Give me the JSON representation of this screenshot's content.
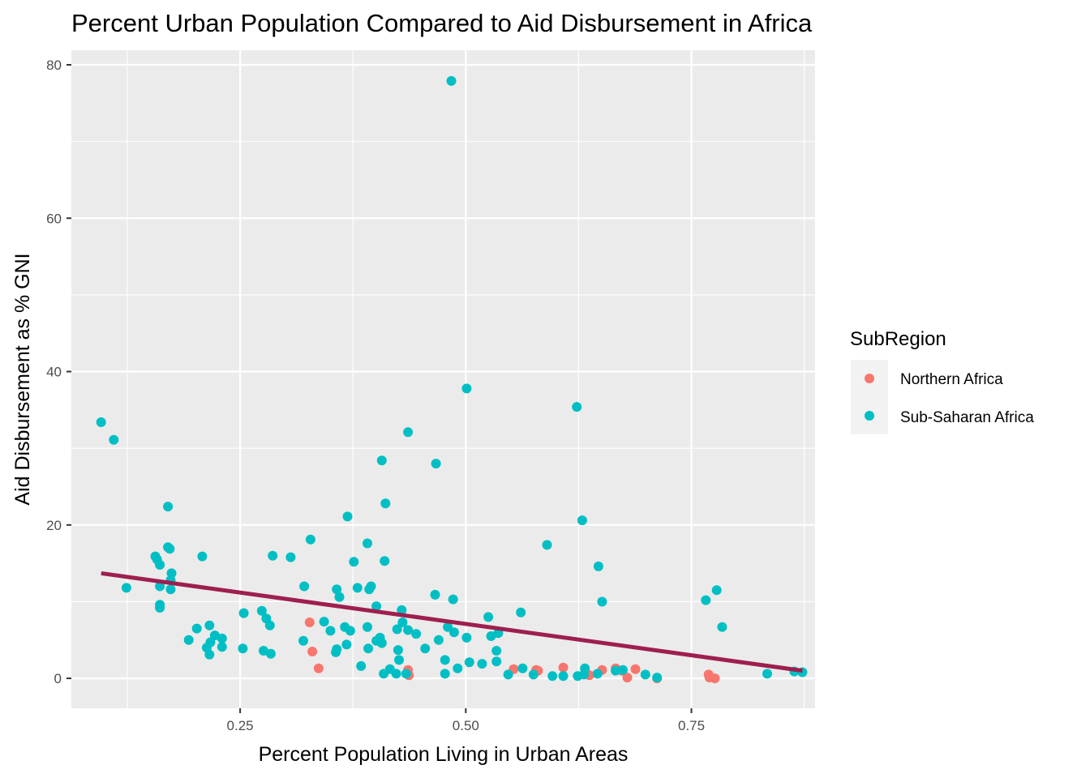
{
  "chart_data": {
    "type": "scatter",
    "title": "Percent Urban Population Compared to Aid Disbursement in Africa",
    "xlabel": "Percent Population Living in Urban Areas",
    "ylabel": "Aid Disbursement as % GNI",
    "xlim": [
      0.063,
      0.887
    ],
    "ylim": [
      -3.9,
      81.9
    ],
    "x_ticks": [
      0.25,
      0.5,
      0.75
    ],
    "x_tick_labels": [
      "0.25",
      "0.50",
      "0.75"
    ],
    "y_ticks": [
      0,
      20,
      40,
      60,
      80
    ],
    "y_tick_labels": [
      "0",
      "20",
      "40",
      "60",
      "80"
    ],
    "grid": true,
    "legend": {
      "title": "SubRegion",
      "position": "right",
      "entries": [
        {
          "label": "Northern Africa",
          "color": "#F8766D"
        },
        {
          "label": "Sub-Saharan Africa",
          "color": "#00BFC4"
        }
      ]
    },
    "trend_line": {
      "x": [
        0.096,
        0.873
      ],
      "y": [
        13.7,
        1.0
      ],
      "color": "#9E1F4F"
    },
    "series": [
      {
        "name": "Northern Africa",
        "color": "#F8766D",
        "points": [
          [
            0.327,
            7.3
          ],
          [
            0.33,
            3.5
          ],
          [
            0.337,
            1.3
          ],
          [
            0.436,
            1.1
          ],
          [
            0.437,
            0.4
          ],
          [
            0.553,
            1.2
          ],
          [
            0.578,
            1.1
          ],
          [
            0.58,
            1.0
          ],
          [
            0.608,
            1.4
          ],
          [
            0.633,
            0.7
          ],
          [
            0.637,
            0.4
          ],
          [
            0.651,
            1.1
          ],
          [
            0.666,
            1.3
          ],
          [
            0.673,
            1.0
          ],
          [
            0.679,
            0.1
          ],
          [
            0.688,
            1.2
          ],
          [
            0.712,
            0.0
          ],
          [
            0.769,
            0.5
          ],
          [
            0.77,
            0.1
          ],
          [
            0.776,
            0.0
          ]
        ]
      },
      {
        "name": "Sub-Saharan Africa",
        "color": "#00BFC4",
        "points": [
          [
            0.096,
            33.4
          ],
          [
            0.11,
            31.1
          ],
          [
            0.124,
            11.8
          ],
          [
            0.156,
            15.9
          ],
          [
            0.158,
            15.5
          ],
          [
            0.161,
            14.8
          ],
          [
            0.161,
            12.0
          ],
          [
            0.161,
            9.6
          ],
          [
            0.161,
            9.2
          ],
          [
            0.17,
            22.4
          ],
          [
            0.17,
            17.1
          ],
          [
            0.172,
            16.9
          ],
          [
            0.173,
            11.6
          ],
          [
            0.173,
            12.8
          ],
          [
            0.174,
            13.7
          ],
          [
            0.193,
            5.0
          ],
          [
            0.202,
            6.5
          ],
          [
            0.208,
            15.9
          ],
          [
            0.213,
            4.0
          ],
          [
            0.216,
            6.9
          ],
          [
            0.216,
            3.1
          ],
          [
            0.217,
            4.7
          ],
          [
            0.222,
            5.6
          ],
          [
            0.23,
            5.2
          ],
          [
            0.23,
            4.1
          ],
          [
            0.254,
            8.5
          ],
          [
            0.253,
            3.9
          ],
          [
            0.274,
            8.8
          ],
          [
            0.276,
            3.6
          ],
          [
            0.279,
            7.8
          ],
          [
            0.283,
            6.9
          ],
          [
            0.284,
            3.2
          ],
          [
            0.286,
            16.0
          ],
          [
            0.306,
            15.8
          ],
          [
            0.32,
            4.9
          ],
          [
            0.321,
            12.0
          ],
          [
            0.328,
            18.1
          ],
          [
            0.343,
            7.4
          ],
          [
            0.35,
            6.2
          ],
          [
            0.356,
            3.4
          ],
          [
            0.357,
            3.8
          ],
          [
            0.357,
            11.6
          ],
          [
            0.36,
            10.6
          ],
          [
            0.366,
            6.7
          ],
          [
            0.368,
            4.4
          ],
          [
            0.369,
            21.1
          ],
          [
            0.372,
            6.2
          ],
          [
            0.376,
            15.2
          ],
          [
            0.38,
            11.8
          ],
          [
            0.384,
            1.6
          ],
          [
            0.391,
            6.7
          ],
          [
            0.391,
            17.6
          ],
          [
            0.392,
            3.9
          ],
          [
            0.393,
            11.6
          ],
          [
            0.395,
            12.0
          ],
          [
            0.401,
            9.4
          ],
          [
            0.401,
            4.9
          ],
          [
            0.405,
            5.3
          ],
          [
            0.407,
            4.6
          ],
          [
            0.407,
            28.4
          ],
          [
            0.409,
            0.6
          ],
          [
            0.41,
            15.3
          ],
          [
            0.411,
            22.8
          ],
          [
            0.416,
            1.2
          ],
          [
            0.423,
            0.6
          ],
          [
            0.424,
            6.4
          ],
          [
            0.425,
            3.7
          ],
          [
            0.426,
            2.4
          ],
          [
            0.429,
            8.9
          ],
          [
            0.43,
            7.3
          ],
          [
            0.434,
            0.6
          ],
          [
            0.436,
            32.1
          ],
          [
            0.436,
            6.3
          ],
          [
            0.445,
            5.8
          ],
          [
            0.455,
            3.9
          ],
          [
            0.466,
            10.9
          ],
          [
            0.467,
            28.0
          ],
          [
            0.47,
            5.0
          ],
          [
            0.477,
            0.6
          ],
          [
            0.477,
            2.4
          ],
          [
            0.48,
            6.7
          ],
          [
            0.484,
            77.9
          ],
          [
            0.486,
            10.3
          ],
          [
            0.487,
            6.0
          ],
          [
            0.491,
            1.3
          ],
          [
            0.501,
            37.8
          ],
          [
            0.501,
            5.3
          ],
          [
            0.504,
            2.1
          ],
          [
            0.518,
            1.9
          ],
          [
            0.525,
            8.0
          ],
          [
            0.528,
            5.5
          ],
          [
            0.534,
            3.6
          ],
          [
            0.534,
            2.2
          ],
          [
            0.536,
            5.9
          ],
          [
            0.547,
            0.5
          ],
          [
            0.561,
            8.6
          ],
          [
            0.563,
            1.3
          ],
          [
            0.575,
            0.5
          ],
          [
            0.59,
            17.4
          ],
          [
            0.596,
            0.3
          ],
          [
            0.608,
            0.3
          ],
          [
            0.623,
            35.4
          ],
          [
            0.624,
            0.3
          ],
          [
            0.629,
            20.6
          ],
          [
            0.631,
            0.5
          ],
          [
            0.632,
            1.3
          ],
          [
            0.646,
            0.6
          ],
          [
            0.647,
            14.6
          ],
          [
            0.651,
            10.0
          ],
          [
            0.666,
            1.0
          ],
          [
            0.674,
            1.1
          ],
          [
            0.699,
            0.5
          ],
          [
            0.712,
            0.1
          ],
          [
            0.766,
            10.2
          ],
          [
            0.778,
            11.5
          ],
          [
            0.784,
            6.7
          ],
          [
            0.834,
            0.6
          ],
          [
            0.864,
            0.9
          ],
          [
            0.873,
            0.8
          ]
        ]
      }
    ]
  }
}
